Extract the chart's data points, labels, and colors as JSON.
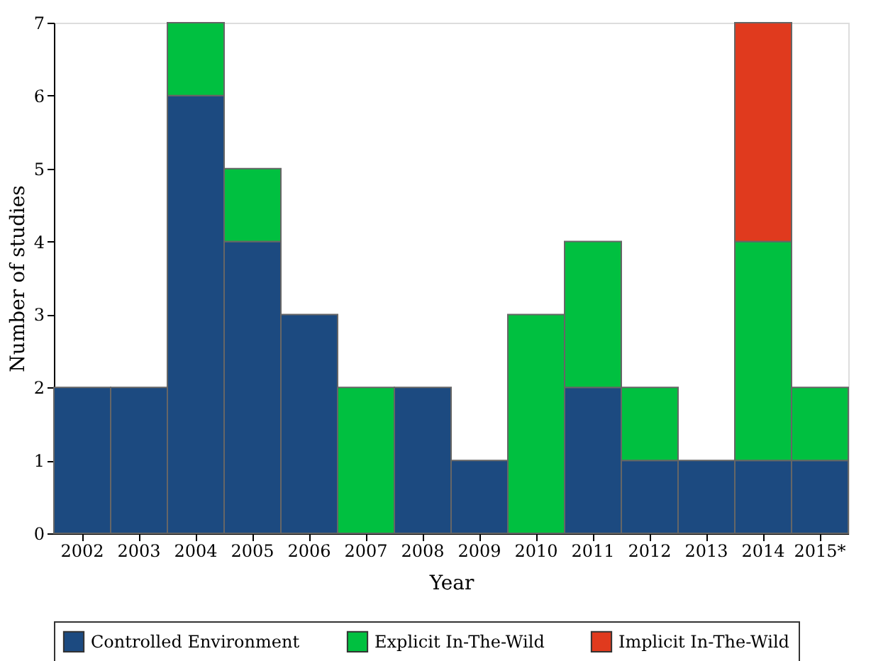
{
  "chart_data": {
    "type": "bar",
    "stacked": true,
    "xlabel": "Year",
    "ylabel": "Number of studies",
    "categories": [
      "2002",
      "2003",
      "2004",
      "2005",
      "2006",
      "2007",
      "2008",
      "2009",
      "2010",
      "2011",
      "2012",
      "2013",
      "2014",
      "2015*"
    ],
    "series": [
      {
        "name": "Controlled Environment",
        "color": "#1c4a80",
        "values": [
          2,
          2,
          6,
          4,
          3,
          null,
          2,
          1,
          null,
          2,
          1,
          1,
          1,
          1
        ]
      },
      {
        "name": "Explicit In-The-Wild",
        "color": "#00c040",
        "values": [
          null,
          null,
          1,
          1,
          null,
          2,
          null,
          null,
          3,
          2,
          1,
          null,
          3,
          1
        ]
      },
      {
        "name": "Implicit In-The-Wild",
        "color": "#e03a1e",
        "values": [
          null,
          null,
          null,
          null,
          null,
          null,
          null,
          null,
          null,
          null,
          null,
          null,
          3,
          null
        ]
      }
    ],
    "ylim": [
      0,
      7
    ],
    "yticks": [
      0,
      1,
      2,
      3,
      4,
      5,
      6,
      7
    ],
    "grid": false,
    "legend": "bottom"
  }
}
